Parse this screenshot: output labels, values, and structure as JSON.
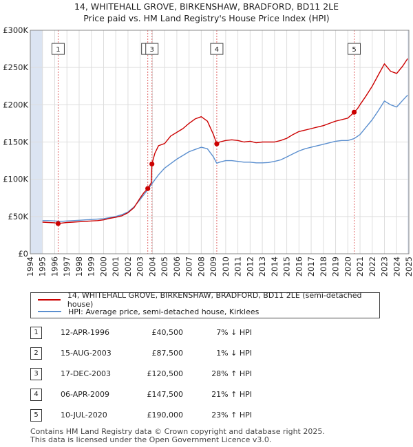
{
  "title_line1": "14, WHITEHALL GROVE, BIRKENSHAW, BRADFORD, BD11 2LE",
  "title_line2": "Price paid vs. HM Land Registry's House Price Index (HPI)",
  "colors": {
    "price_paid": "#cc0000",
    "hpi": "#5b8fcf",
    "shade": "#dbe4f2"
  },
  "chart_data": {
    "type": "line",
    "xlim": [
      1994,
      2025
    ],
    "ylim": [
      0,
      300000
    ],
    "y_ticks": [
      0,
      50000,
      100000,
      150000,
      200000,
      250000,
      300000
    ],
    "y_tick_labels": [
      "£0",
      "£50K",
      "£100K",
      "£150K",
      "£200K",
      "£250K",
      "£300K"
    ],
    "x_ticks": [
      1994,
      1995,
      1996,
      1997,
      1998,
      1999,
      2000,
      2001,
      2002,
      2003,
      2004,
      2005,
      2006,
      2007,
      2008,
      2009,
      2010,
      2011,
      2012,
      2013,
      2014,
      2015,
      2016,
      2017,
      2018,
      2019,
      2020,
      2021,
      2022,
      2023,
      2024,
      2025
    ],
    "x_tick_labels": [
      "1994",
      "1995",
      "1996",
      "1997",
      "1998",
      "1999",
      "2000",
      "2001",
      "2002",
      "2003",
      "2004",
      "2005",
      "2006",
      "2007",
      "2008",
      "2009",
      "2010",
      "2011",
      "2012",
      "2013",
      "2014",
      "2015",
      "2016",
      "2017",
      "2018",
      "2019",
      "2020",
      "2021",
      "2022",
      "2023",
      "2024",
      "2025"
    ],
    "shaded_ranges": [
      [
        1994,
        1995
      ],
      [
        2024.9,
        2025
      ]
    ],
    "series": [
      {
        "name": "14, WHITEHALL GROVE, BIRKENSHAW, BRADFORD, BD11 2LE (semi-detached house)",
        "color": "#cc0000",
        "x": [
          1995.0,
          1995.5,
          1996.0,
          1996.28,
          1996.5,
          1997.0,
          1997.5,
          1998.0,
          1998.5,
          1999.0,
          1999.5,
          2000.0,
          2000.5,
          2001.0,
          2001.5,
          2002.0,
          2002.5,
          2003.0,
          2003.3,
          2003.62,
          2003.9,
          2003.96,
          2004.2,
          2004.5,
          2005.0,
          2005.5,
          2006.0,
          2006.5,
          2007.0,
          2007.5,
          2008.0,
          2008.5,
          2009.0,
          2009.27,
          2009.5,
          2010.0,
          2010.5,
          2011.0,
          2011.5,
          2012.0,
          2012.5,
          2013.0,
          2013.5,
          2014.0,
          2014.5,
          2015.0,
          2015.5,
          2016.0,
          2016.5,
          2017.0,
          2017.5,
          2018.0,
          2018.5,
          2019.0,
          2019.5,
          2020.0,
          2020.52,
          2020.8,
          2021.0,
          2021.5,
          2022.0,
          2022.5,
          2023.0,
          2023.5,
          2024.0,
          2024.5,
          2024.9
        ],
        "values": [
          42500,
          42000,
          41500,
          40500,
          41000,
          42000,
          42500,
          43000,
          43500,
          44000,
          44500,
          45500,
          47500,
          49000,
          51000,
          55000,
          62000,
          75000,
          82000,
          87500,
          95000,
          120500,
          135000,
          145000,
          148000,
          158000,
          163000,
          168000,
          175000,
          181000,
          184000,
          178000,
          160000,
          147500,
          150000,
          152000,
          153000,
          152000,
          150000,
          151000,
          149000,
          150000,
          150000,
          150000,
          152000,
          155000,
          160000,
          164000,
          166000,
          168000,
          170000,
          172000,
          175000,
          178000,
          180000,
          182000,
          190000,
          195000,
          200000,
          212000,
          225000,
          240000,
          255000,
          245000,
          242000,
          252000,
          262000
        ]
      },
      {
        "name": "HPI: Average price, semi-detached house, Kirklees",
        "color": "#5b8fcf",
        "x": [
          1995.0,
          1995.5,
          1996.0,
          1996.5,
          1997.0,
          1997.5,
          1998.0,
          1998.5,
          1999.0,
          1999.5,
          2000.0,
          2000.5,
          2001.0,
          2001.5,
          2002.0,
          2002.5,
          2003.0,
          2003.62,
          2003.96,
          2004.5,
          2005.0,
          2005.5,
          2006.0,
          2006.5,
          2007.0,
          2007.5,
          2008.0,
          2008.5,
          2009.0,
          2009.27,
          2009.5,
          2010.0,
          2010.5,
          2011.0,
          2011.5,
          2012.0,
          2012.5,
          2013.0,
          2013.5,
          2014.0,
          2014.5,
          2015.0,
          2015.5,
          2016.0,
          2016.5,
          2017.0,
          2017.5,
          2018.0,
          2018.5,
          2019.0,
          2019.5,
          2020.0,
          2020.52,
          2021.0,
          2021.5,
          2022.0,
          2022.5,
          2023.0,
          2023.5,
          2024.0,
          2024.5,
          2024.9
        ],
        "values": [
          44500,
          44500,
          44000,
          43500,
          44000,
          44500,
          45000,
          45500,
          46000,
          46500,
          47000,
          48500,
          50000,
          52500,
          56000,
          63000,
          73000,
          86000,
          94000,
          106000,
          115000,
          121000,
          127000,
          132000,
          137000,
          140000,
          143000,
          141000,
          130000,
          121500,
          123000,
          125000,
          125000,
          124000,
          123000,
          123000,
          122000,
          122000,
          122500,
          124000,
          126000,
          130000,
          134000,
          138000,
          141000,
          143000,
          145000,
          147000,
          149000,
          151000,
          152000,
          152000,
          154500,
          160000,
          170000,
          180000,
          192000,
          205000,
          200000,
          197000,
          206000,
          213000
        ]
      }
    ],
    "sales": [
      {
        "label": "1",
        "x": 1996.28,
        "value": 40500
      },
      {
        "label": "2",
        "x": 2003.62,
        "value": 87500
      },
      {
        "label": "3",
        "x": 2003.96,
        "value": 120500
      },
      {
        "label": "4",
        "x": 2009.27,
        "value": 147500
      },
      {
        "label": "5",
        "x": 2020.52,
        "value": 190000
      }
    ],
    "marker_label_value": 275000
  },
  "legend": {
    "price_paid": "14, WHITEHALL GROVE, BIRKENSHAW, BRADFORD, BD11 2LE (semi-detached house)",
    "hpi": "HPI: Average price, semi-detached house, Kirklees"
  },
  "table": [
    {
      "num": "1",
      "date": "12-APR-1996",
      "price": "£40,500",
      "hpi": "7% ↓ HPI"
    },
    {
      "num": "2",
      "date": "15-AUG-2003",
      "price": "£87,500",
      "hpi": "1% ↓ HPI"
    },
    {
      "num": "3",
      "date": "17-DEC-2003",
      "price": "£120,500",
      "hpi": "28% ↑ HPI"
    },
    {
      "num": "4",
      "date": "06-APR-2009",
      "price": "£147,500",
      "hpi": "21% ↑ HPI"
    },
    {
      "num": "5",
      "date": "10-JUL-2020",
      "price": "£190,000",
      "hpi": "23% ↑ HPI"
    }
  ],
  "footer": {
    "line1": "Contains HM Land Registry data © Crown copyright and database right 2025.",
    "line2": "This data is licensed under the Open Government Licence v3.0."
  }
}
